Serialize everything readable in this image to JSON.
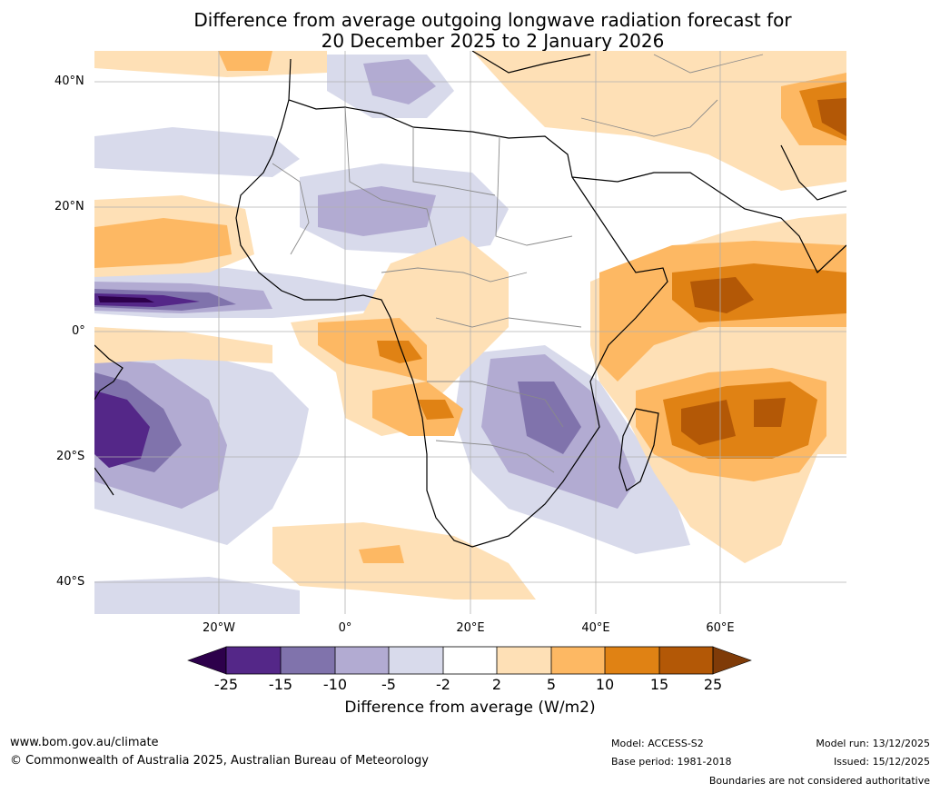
{
  "title": {
    "line1": "Difference from average outgoing longwave radiation forecast for",
    "line2": "20 December 2025 to 2 January 2026"
  },
  "axes": {
    "lat_labels": [
      "40°N",
      "20°N",
      "0°",
      "20°S",
      "40°S"
    ],
    "lon_labels": [
      "20°W",
      "0°",
      "20°E",
      "40°E",
      "60°E"
    ]
  },
  "colorbar": {
    "title": "Difference from average (W/m2)",
    "ticks": [
      "-25",
      "-15",
      "-10",
      "-5",
      "-2",
      "2",
      "5",
      "10",
      "15",
      "25"
    ],
    "colors": [
      "#2d004b",
      "#542788",
      "#8073ac",
      "#b2abd2",
      "#d8daeb",
      "#ffffff",
      "#fee0b6",
      "#fdb863",
      "#e08214",
      "#b35806",
      "#7f3b08"
    ]
  },
  "footer": {
    "website": "www.bom.gov.au/climate",
    "copyright": "© Commonwealth of Australia 2025, Australian Bureau of Meteorology",
    "model": "Model: ACCESS-S2",
    "base_period": "Base period: 1981-2018",
    "model_run": "Model run: 13/12/2025",
    "issued": "Issued: 15/12/2025",
    "disclaimer": "Boundaries are not considered authoritative"
  }
}
